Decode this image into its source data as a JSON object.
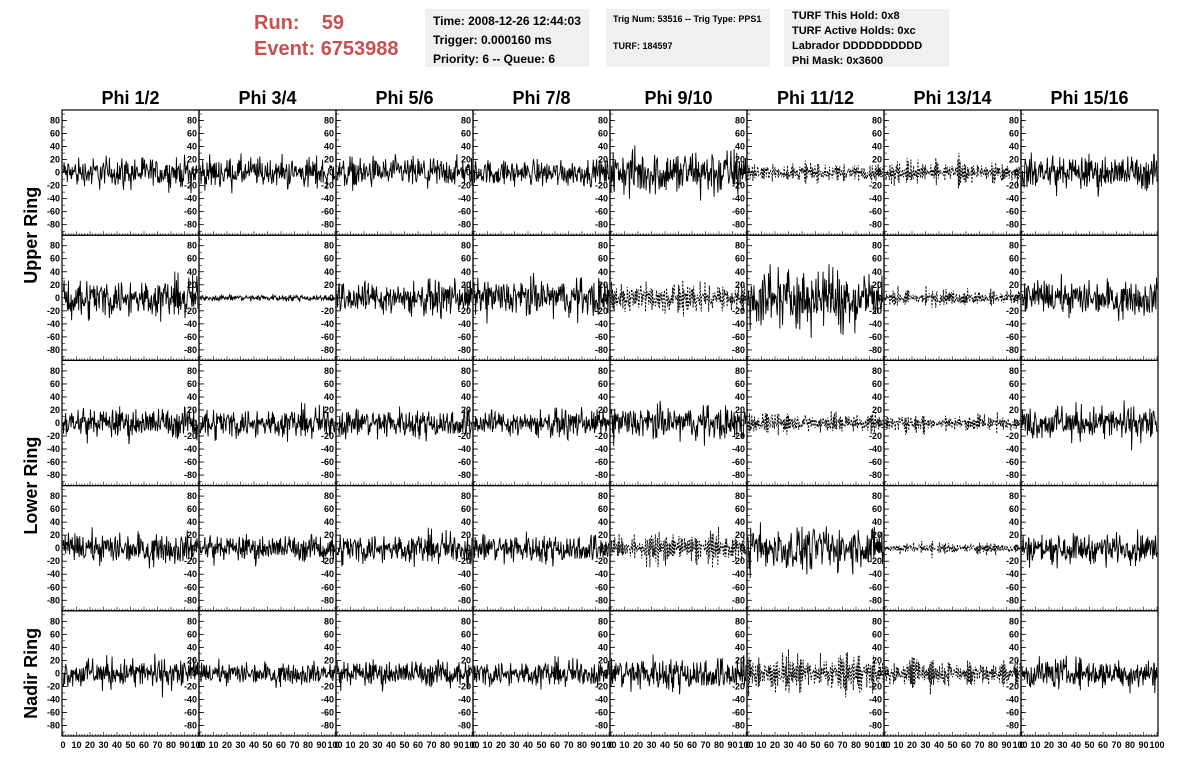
{
  "header": {
    "run_label": "Run:",
    "run_value": "59",
    "event_label": "Event:",
    "event_value": "6753988",
    "time_line": "Time: 2008-12-26 12:44:03",
    "trigger_line": "Trigger: 0.000160 ms",
    "priority_line": "Priority: 6 -- Queue: 6",
    "trig_line": "Trig Num: 53516 -- Trig Type: PPS1",
    "turf_line": "TURF: 184597",
    "turf_hold_line": "TURF This Hold: 0x8",
    "turf_active_line": "TURF Active Holds: 0xc",
    "labrador_line": "Labrador DDDDDDDDDD",
    "phi_mask_line": "Phi Mask: 0x3600"
  },
  "chart_data": {
    "type": "line",
    "grid": false,
    "columns": [
      "Phi 1/2",
      "Phi 3/4",
      "Phi 5/6",
      "Phi 7/8",
      "Phi 9/10",
      "Phi 11/12",
      "Phi 13/14",
      "Phi 15/16"
    ],
    "rings": [
      {
        "label": "Upper Ring",
        "rows": 2
      },
      {
        "label": "Lower Ring",
        "rows": 2
      },
      {
        "label": "Nadir Ring",
        "rows": 1
      }
    ],
    "xlim": [
      0,
      100
    ],
    "ylim": [
      -90,
      90
    ],
    "x_ticks": [
      0,
      10,
      20,
      30,
      40,
      50,
      60,
      70,
      80,
      90,
      100
    ],
    "x_tick_labels": [
      "0",
      "10",
      "20",
      "30",
      "40",
      "50",
      "60",
      "70",
      "80",
      "90",
      "100"
    ],
    "y_ticks": [
      -80,
      -60,
      -40,
      -20,
      0,
      20,
      40,
      60,
      80
    ],
    "y_tick_labels": [
      "-80",
      "-60",
      "-40",
      "-20",
      "0",
      "20",
      "40",
      "60",
      "80"
    ],
    "trace_amplitudes": [
      [
        14,
        14,
        14,
        12,
        22,
        14,
        16,
        16
      ],
      [
        18,
        3,
        15,
        18,
        26,
        28,
        12,
        16
      ],
      [
        14,
        14,
        14,
        12,
        16,
        16,
        12,
        16
      ],
      [
        14,
        12,
        14,
        14,
        22,
        20,
        8,
        14
      ],
      [
        14,
        10,
        12,
        12,
        16,
        26,
        18,
        14
      ]
    ],
    "dashed_traces": [
      [
        0,
        5
      ],
      [
        0,
        6
      ],
      [
        1,
        4
      ],
      [
        1,
        6
      ],
      [
        2,
        5
      ],
      [
        2,
        6
      ],
      [
        3,
        4
      ],
      [
        3,
        6
      ],
      [
        4,
        5
      ],
      [
        4,
        6
      ]
    ],
    "series_color": "#000000"
  }
}
